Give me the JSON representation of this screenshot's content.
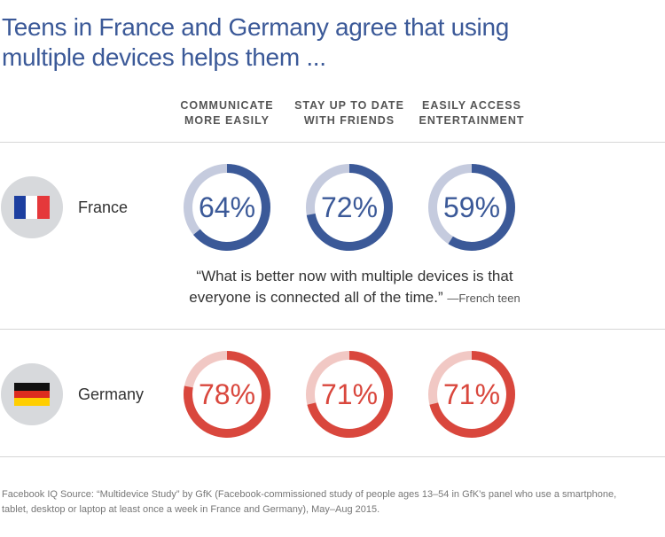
{
  "header": {
    "title_line1": "Teens in France and Germany agree that using",
    "title_line2": "multiple devices helps them ..."
  },
  "chart_data": {
    "type": "donut",
    "title": "Teens in France and Germany agree that using multiple devices helps them ...",
    "categories": [
      [
        "COMMUNICATE",
        "MORE EASILY"
      ],
      [
        "STAY UP TO DATE",
        "WITH FRIENDS"
      ],
      [
        "EASILY ACCESS",
        "ENTERTAINMENT"
      ]
    ],
    "unit": "%",
    "series": [
      {
        "name": "France",
        "values": [
          64,
          72,
          59
        ],
        "labels": [
          "64%",
          "72%",
          "59%"
        ],
        "color": "#3b5998",
        "track_color": "#c5cbde"
      },
      {
        "name": "Germany",
        "values": [
          78,
          71,
          71
        ],
        "labels": [
          "78%",
          "71%",
          "71%"
        ],
        "color": "#d9473d",
        "track_color": "#f1c8c4"
      }
    ]
  },
  "flags": {
    "france": {
      "colors": [
        "#1d3fa0",
        "#ffffff",
        "#e5383b"
      ]
    },
    "germany": {
      "colors": [
        "#111111",
        "#dd2c1f",
        "#ffce00"
      ]
    }
  },
  "quote": {
    "text_line1": "“What is better now with multiple devices is that",
    "text_line2": "everyone is connected all of the time.”",
    "attribution": "—French teen"
  },
  "source": {
    "line1": "Facebook IQ Source: “Multidevice Study” by GfK (Facebook-commissioned study of people ages 13–54 in GfK’s panel who use a smartphone,",
    "line2": "tablet, desktop or laptop at least once a week in France and Germany), May–Aug 2015."
  }
}
